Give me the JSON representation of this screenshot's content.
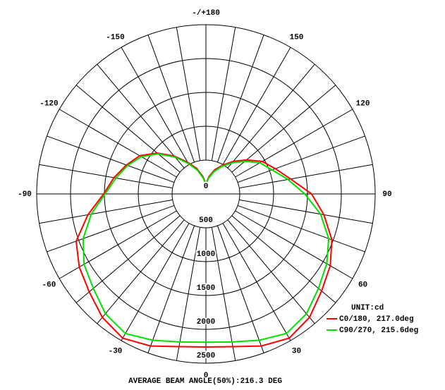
{
  "chart_data": {
    "type": "polar",
    "footer": "AVERAGE BEAM ANGLE(50%):216.3 DEG",
    "unit_label": "UNIT:cd",
    "theta": [
      -180,
      -170,
      -160,
      -150,
      -140,
      -130,
      -120,
      -110,
      -100,
      -90,
      -80,
      -70,
      -60,
      -50,
      -40,
      -30,
      -20,
      -10,
      0,
      10,
      20,
      30,
      40,
      50,
      60,
      70,
      80,
      90,
      100,
      110,
      120,
      130,
      140,
      150,
      160,
      170,
      180
    ],
    "theta_ticks": [
      {
        "value": 180,
        "label": "-/+180"
      },
      150,
      120,
      90,
      60,
      30,
      0,
      -30,
      -60,
      -90,
      -120,
      -150
    ],
    "rlim": [
      0,
      2500
    ],
    "rticks": [
      0,
      500,
      1000,
      1500,
      2000,
      2500
    ],
    "series": [
      {
        "name": "C0/180, 217.0deg",
        "color": "#ff0000",
        "values": [
          150,
          260,
          400,
          540,
          730,
          940,
          1130,
          1250,
          1380,
          1510,
          1770,
          2040,
          2160,
          2250,
          2380,
          2460,
          2390,
          2290,
          2260,
          2290,
          2390,
          2460,
          2380,
          2230,
          2120,
          1980,
          1770,
          1560,
          1270,
          1090,
          960,
          780,
          630,
          490,
          380,
          260,
          150
        ]
      },
      {
        "name": "C90/270, 215.6deg",
        "color": "#00e000",
        "values": [
          140,
          240,
          375,
          520,
          710,
          920,
          1100,
          1230,
          1350,
          1490,
          1720,
          1930,
          2080,
          2170,
          2310,
          2380,
          2300,
          2220,
          2190,
          2220,
          2300,
          2380,
          2310,
          2170,
          2060,
          1930,
          1720,
          1460,
          1230,
          1040,
          920,
          750,
          600,
          470,
          350,
          240,
          140
        ]
      }
    ]
  }
}
